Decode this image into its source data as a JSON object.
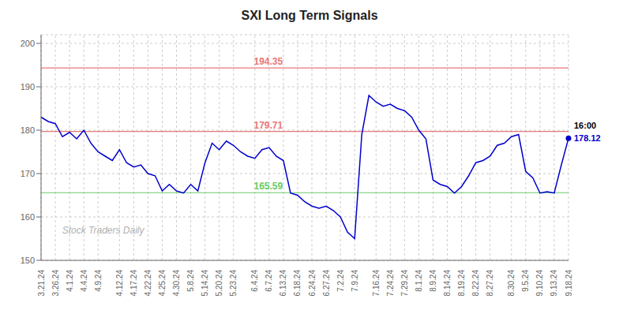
{
  "chart_data": {
    "type": "line",
    "title": "SXI Long Term Signals",
    "categories": [
      "3.21.24",
      null,
      "3.26.24",
      null,
      "4.1.24",
      null,
      "4.4.24",
      null,
      "4.9.24",
      null,
      null,
      "4.12.24",
      null,
      "4.17.24",
      null,
      "4.22.24",
      null,
      "4.25.24",
      null,
      "4.30.24",
      null,
      "5.8.24",
      null,
      "5.14.24",
      null,
      "5.20.24",
      null,
      "5.23.24",
      null,
      null,
      "6.4.24",
      null,
      "6.7.24",
      null,
      "6.13.24",
      null,
      "6.18.24",
      null,
      "6.24.24",
      null,
      "6.27.24",
      null,
      "7.2.24",
      null,
      "7.9.24",
      null,
      null,
      "7.16.24",
      null,
      "7.24.24",
      null,
      "7.29.24",
      null,
      "8.1.24",
      null,
      "8.9.24",
      null,
      "8.14.24",
      null,
      "8.19.24",
      null,
      "8.22.24",
      null,
      "8.27.24",
      null,
      null,
      "8.30.24",
      null,
      "9.5.24",
      null,
      "9.10.24",
      null,
      "9.13.24",
      null,
      "9.18.24"
    ],
    "values": [
      183.0,
      182.0,
      181.5,
      178.5,
      179.5,
      178.0,
      180.0,
      177.0,
      175.0,
      174.0,
      173.0,
      175.5,
      172.5,
      171.5,
      172.0,
      170.0,
      169.5,
      166.0,
      167.5,
      166.0,
      165.5,
      167.5,
      166.0,
      172.5,
      177.0,
      175.5,
      177.5,
      176.5,
      175.0,
      174.0,
      173.5,
      175.5,
      176.0,
      174.0,
      173.0,
      165.5,
      165.0,
      163.5,
      162.5,
      162.0,
      162.5,
      161.5,
      160.0,
      156.5,
      155.0,
      179.0,
      188.0,
      186.5,
      185.5,
      186.0,
      185.0,
      184.5,
      183.0,
      180.0,
      178.0,
      168.5,
      167.5,
      167.0,
      165.5,
      167.0,
      169.5,
      172.5,
      173.0,
      174.0,
      176.5,
      177.0,
      178.5,
      179.0,
      170.5,
      169.0,
      165.5,
      165.8,
      165.5,
      172.0,
      178.12
    ],
    "color": "#0000cc",
    "ylim": [
      150,
      202
    ],
    "yticks": [
      150,
      160,
      170,
      180,
      190,
      200
    ],
    "grid": true,
    "reference_lines": [
      {
        "value": 194.35,
        "color": "#e87878"
      },
      {
        "value": 179.71,
        "color": "#e87878"
      },
      {
        "value": 165.59,
        "color": "#66cc66"
      }
    ],
    "last_point": {
      "label": "16:00",
      "marker": "circle"
    },
    "annotations": [
      "Stock Traders Daily"
    ]
  }
}
